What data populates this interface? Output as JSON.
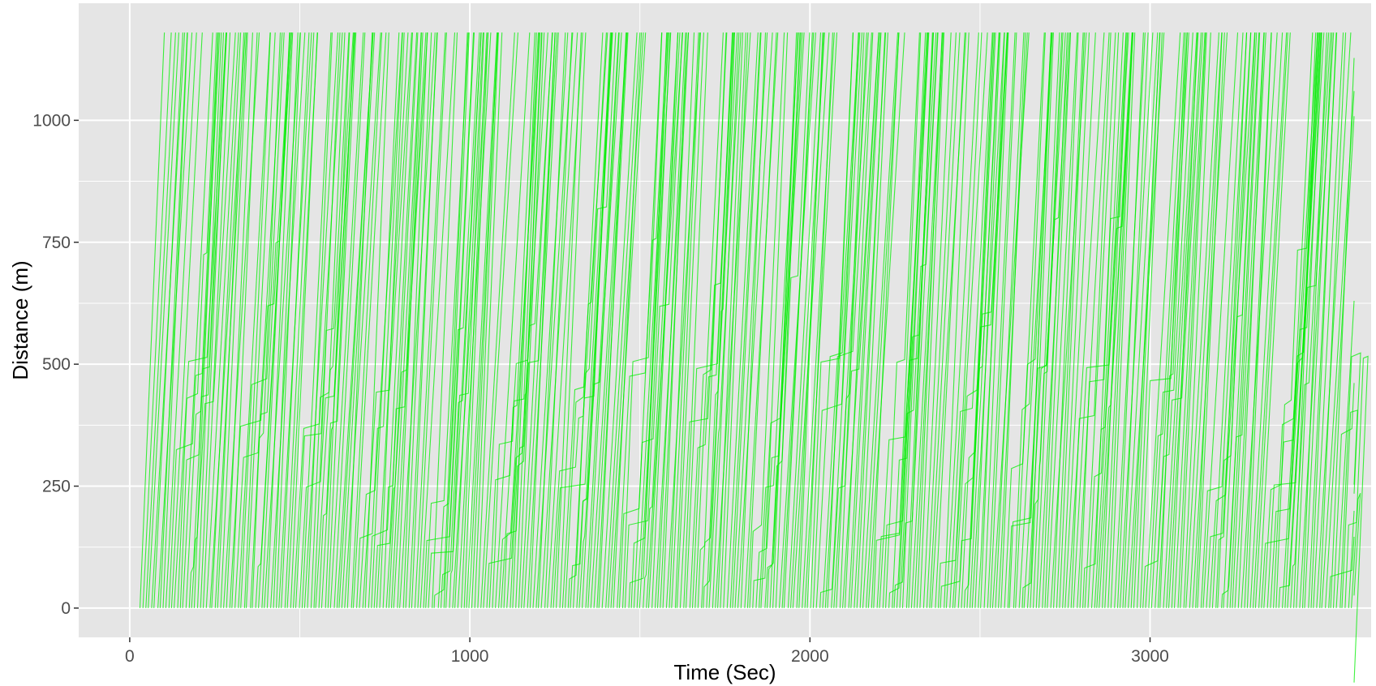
{
  "chart_data": {
    "type": "line",
    "title": "",
    "xlabel": "Time (Sec)",
    "ylabel": "Distance (m)",
    "xlim": [
      -150,
      3650
    ],
    "ylim": [
      -60,
      1240
    ],
    "x_ticks": [
      0,
      1000,
      2000,
      3000
    ],
    "x_tick_labels": [
      "0",
      "1000",
      "2000",
      "3000"
    ],
    "y_ticks": [
      0,
      250,
      500,
      750,
      1000
    ],
    "y_tick_labels": [
      "0",
      "250",
      "500",
      "750",
      "1000"
    ],
    "grid": true,
    "legend": "none",
    "road_length_m": 1180,
    "duration_s": 3600,
    "vehicle_trajectories": 420,
    "line_color": "#00ee00",
    "panel_color": "#e5e5e5",
    "grid_color": "#ffffff"
  }
}
